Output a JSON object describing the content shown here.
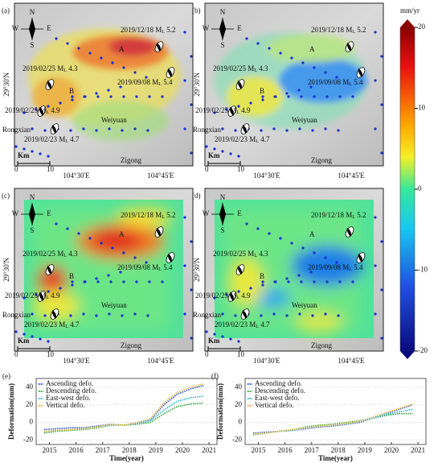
{
  "panels": [
    {
      "letter": "(a)",
      "style": "ascending"
    },
    {
      "letter": "(b)",
      "style": "descending"
    },
    {
      "letter": "(c)",
      "style": "eastwest"
    },
    {
      "letter": "(d)",
      "style": "vertical"
    }
  ],
  "map_labels": {
    "compass": {
      "n": "N",
      "s": "S",
      "e": "E",
      "w": "W"
    },
    "point_a": "A",
    "point_b": "B",
    "town1": "Weiyuan",
    "town2": "Rongxian",
    "town3": "Zigong",
    "scale_unit": "Km",
    "scale_start": "0",
    "scale_end": "10"
  },
  "events": [
    {
      "pre": "2019/12/18 M",
      "sub": "L",
      "post": " 5.2"
    },
    {
      "pre": "2019/02/25 M",
      "sub": "L",
      "post": " 4.3"
    },
    {
      "pre": "2019/09/08 M",
      "sub": "L",
      "post": " 5.4"
    },
    {
      "pre": "2019/02/25 M",
      "sub": "L",
      "post": " 4.9"
    },
    {
      "pre": "2019/02/23 M",
      "sub": "L",
      "post": " 4.7"
    }
  ],
  "map_axes": {
    "lat": "29°30'N",
    "lon": [
      "104°30'E",
      "104°45'E"
    ]
  },
  "colorbar": {
    "title": "mm/yr",
    "range": [
      -20,
      20
    ],
    "ticks": [
      20,
      10,
      0,
      -10,
      -20
    ]
  },
  "chart_data": [
    {
      "type": "line",
      "letter": "(e)",
      "x_label": "Time(year)",
      "y_label": "Deformation(mm)",
      "x": [
        2014.8,
        2015.3,
        2015.8,
        2016.3,
        2016.8,
        2017.3,
        2017.8,
        2018.3,
        2018.8,
        2019.3,
        2019.8,
        2020.3,
        2020.8
      ],
      "xlim": [
        2014.5,
        2021.3
      ],
      "xticks": [
        2015,
        2016,
        2017,
        2018,
        2019,
        2020,
        2021
      ],
      "ylim": [
        -25,
        50
      ],
      "yticks": [
        -20,
        0,
        20,
        40
      ],
      "series": [
        {
          "name": "Ascending defo.",
          "color": "#1f4fd6",
          "values": [
            -8,
            -7,
            -6,
            -6,
            -4,
            -2,
            -3,
            0,
            3,
            20,
            32,
            38,
            42
          ]
        },
        {
          "name": "Descending defo.",
          "color": "#2ca02c",
          "values": [
            -12,
            -10,
            -9,
            -8,
            -6,
            -3,
            -3,
            -2,
            0,
            10,
            18,
            21,
            22
          ]
        },
        {
          "name": "East-west defo.",
          "color": "#22b5c8",
          "values": [
            -10,
            -9,
            -8,
            -7,
            -5,
            -2,
            -3,
            -1,
            2,
            14,
            24,
            28,
            30
          ]
        },
        {
          "name": "Vertical defo.",
          "color": "#f0b030",
          "values": [
            -10,
            -9,
            -8,
            -7,
            -5,
            -2,
            -3,
            0,
            4,
            22,
            34,
            40,
            44
          ]
        }
      ]
    },
    {
      "type": "line",
      "letter": "(f)",
      "x_label": "Time(year)",
      "y_label": "Deformation(mm)",
      "x": [
        2014.8,
        2015.3,
        2015.8,
        2016.3,
        2016.8,
        2017.3,
        2017.8,
        2018.3,
        2018.8,
        2019.3,
        2019.8,
        2020.3,
        2020.8
      ],
      "xlim": [
        2014.5,
        2021.3
      ],
      "xticks": [
        2015,
        2016,
        2017,
        2018,
        2019,
        2020,
        2021
      ],
      "ylim": [
        -25,
        50
      ],
      "yticks": [
        -20,
        0,
        20,
        40
      ],
      "series": [
        {
          "name": "Ascending defo.",
          "color": "#1f4fd6",
          "values": [
            -12,
            -11,
            -10,
            -9,
            -7,
            -5,
            -4,
            -2,
            0,
            5,
            10,
            15,
            20
          ]
        },
        {
          "name": "Descending defo.",
          "color": "#2ca02c",
          "values": [
            -14,
            -12,
            -10,
            -8,
            -5,
            -3,
            -2,
            0,
            2,
            5,
            8,
            10,
            10
          ]
        },
        {
          "name": "East-west defo.",
          "color": "#22b5c8",
          "values": [
            -13,
            -12,
            -10,
            -9,
            -6,
            -4,
            -3,
            -1,
            1,
            5,
            9,
            12,
            15
          ]
        },
        {
          "name": "Vertical defo.",
          "color": "#f0b030",
          "values": [
            -13,
            -12,
            -10,
            -8,
            -6,
            -4,
            -3,
            -1,
            1,
            6,
            11,
            16,
            21
          ]
        }
      ]
    }
  ]
}
